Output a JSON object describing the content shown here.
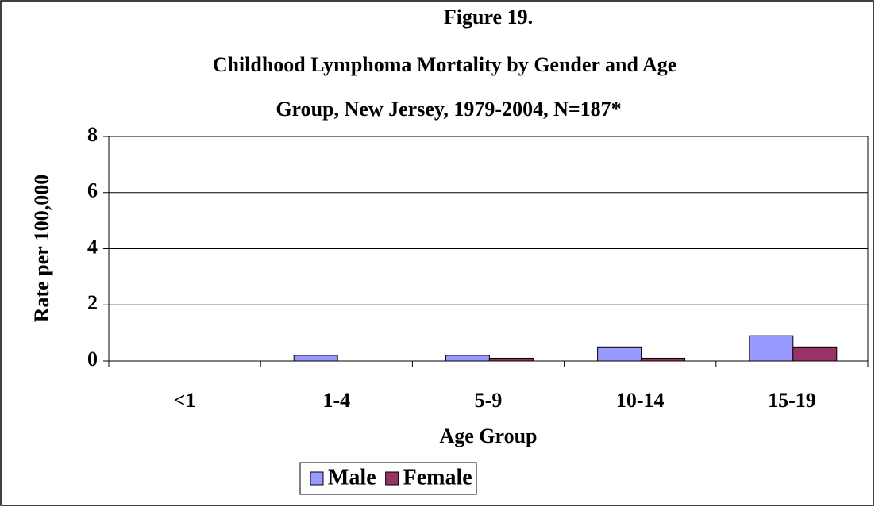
{
  "chart_data": {
    "type": "bar",
    "title": [
      "Figure 19.",
      "Childhood Lymphoma Mortality by Gender and Age",
      "Group, New Jersey, 1979-2004, N=187*"
    ],
    "x_label": "Age Group",
    "y_label": "Rate per 100,000",
    "categories": [
      "<1",
      "1-4",
      "5-9",
      "10-14",
      "15-19"
    ],
    "series": [
      {
        "name": "Male",
        "color": "#9999ff",
        "values": [
          0,
          0.2,
          0.2,
          0.5,
          0.9
        ]
      },
      {
        "name": "Female",
        "color": "#993366",
        "values": [
          0,
          0,
          0.1,
          0.1,
          0.5
        ]
      }
    ],
    "ylim": [
      0,
      8
    ],
    "yticks": [
      0,
      2,
      4,
      6,
      8
    ],
    "grid": true,
    "legend": "bottom"
  }
}
